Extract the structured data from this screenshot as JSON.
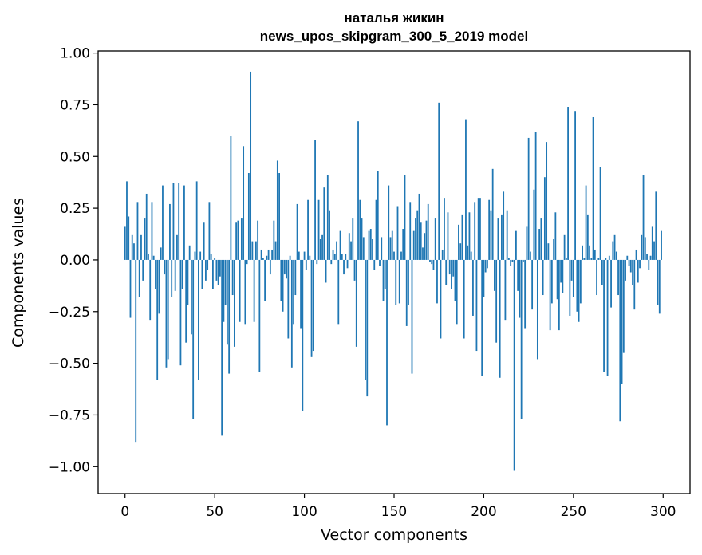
{
  "chart_data": {
    "type": "bar",
    "title": [
      "наталья жикин",
      "news_upos_skipgram_300_5_2019 model"
    ],
    "xlabel": "Vector components",
    "ylabel": "Components values",
    "xlim": [
      -15,
      315
    ],
    "ylim": [
      -1.13,
      1.01
    ],
    "xticks": [
      0,
      50,
      100,
      150,
      200,
      250,
      300
    ],
    "xtick_labels": [
      "0",
      "50",
      "100",
      "150",
      "200",
      "250",
      "300"
    ],
    "yticks": [
      1.0,
      0.75,
      0.5,
      0.25,
      0.0,
      -0.25,
      -0.5,
      -0.75,
      -1.0
    ],
    "ytick_labels": [
      "1.00",
      "0.75",
      "0.50",
      "0.25",
      "0.00",
      "−0.25",
      "−0.50",
      "−0.75",
      "−1.00"
    ],
    "grid": false,
    "bar_color": "#1f77b4",
    "values": [
      0.16,
      0.38,
      0.21,
      -0.28,
      0.12,
      0.08,
      -0.88,
      0.28,
      -0.18,
      0.12,
      -0.1,
      0.2,
      0.32,
      0.03,
      -0.29,
      0.28,
      0.02,
      -0.14,
      -0.58,
      -0.26,
      0.06,
      0.36,
      -0.07,
      -0.52,
      -0.48,
      0.27,
      -0.18,
      0.37,
      -0.15,
      0.12,
      0.37,
      -0.51,
      -0.14,
      0.36,
      -0.4,
      -0.22,
      0.07,
      -0.36,
      -0.77,
      0.04,
      0.38,
      -0.58,
      0.04,
      -0.14,
      0.18,
      -0.1,
      -0.05,
      0.28,
      0.03,
      -0.14,
      0.01,
      -0.1,
      -0.12,
      -0.08,
      -0.85,
      -0.3,
      -0.22,
      -0.41,
      -0.55,
      0.6,
      -0.17,
      -0.42,
      0.18,
      0.19,
      -0.3,
      0.2,
      0.55,
      -0.31,
      -0.02,
      0.42,
      0.91,
      0.09,
      -0.3,
      0.09,
      0.19,
      -0.54,
      0.05,
      0.01,
      -0.2,
      0.02,
      0.05,
      -0.07,
      0.05,
      0.19,
      0.09,
      0.48,
      0.42,
      -0.2,
      -0.25,
      -0.07,
      -0.09,
      -0.38,
      0.02,
      -0.52,
      -0.31,
      -0.17,
      0.27,
      0.04,
      -0.33,
      -0.73,
      0.04,
      -0.05,
      0.29,
      0.02,
      -0.47,
      -0.44,
      0.58,
      -0.02,
      0.29,
      0.1,
      0.12,
      0.35,
      -0.11,
      0.41,
      0.24,
      -0.02,
      0.05,
      0.03,
      0.09,
      -0.31,
      0.14,
      0.03,
      -0.07,
      0.03,
      -0.04,
      0.13,
      0.09,
      0.2,
      -0.1,
      -0.42,
      0.67,
      0.29,
      0.2,
      0.11,
      -0.58,
      -0.66,
      0.14,
      0.15,
      0.1,
      -0.05,
      0.29,
      0.43,
      -0.03,
      0.11,
      -0.2,
      -0.14,
      -0.8,
      0.36,
      0.11,
      0.14,
      0.04,
      -0.22,
      0.26,
      -0.21,
      0.04,
      0.15,
      0.41,
      -0.32,
      -0.22,
      0.28,
      -0.55,
      0.14,
      0.2,
      0.24,
      0.32,
      0.18,
      0.06,
      0.13,
      0.19,
      0.27,
      -0.01,
      -0.02,
      -0.05,
      0.2,
      -0.21,
      0.76,
      -0.38,
      0.05,
      0.3,
      -0.12,
      0.23,
      -0.07,
      -0.14,
      -0.08,
      -0.2,
      -0.31,
      0.17,
      0.08,
      0.22,
      -0.38,
      0.68,
      0.07,
      0.23,
      0.04,
      -0.27,
      0.28,
      -0.44,
      0.3,
      0.3,
      -0.56,
      -0.18,
      -0.06,
      -0.04,
      0.29,
      0.24,
      0.44,
      -0.15,
      -0.4,
      0.2,
      -0.57,
      0.22,
      0.33,
      -0.29,
      0.24,
      0.01,
      -0.03,
      -0.01,
      -1.02,
      0.14,
      -0.15,
      -0.28,
      -0.77,
      -0.01,
      -0.33,
      0.16,
      0.59,
      0.04,
      -0.24,
      0.34,
      0.62,
      -0.48,
      0.15,
      0.2,
      -0.17,
      0.4,
      0.57,
      0.08,
      -0.34,
      -0.21,
      0.1,
      0.23,
      -0.19,
      -0.34,
      -0.11,
      -0.16,
      0.12,
      0.01,
      0.74,
      -0.27,
      -0.1,
      -0.18,
      0.72,
      -0.25,
      -0.3,
      -0.21,
      0.07,
      0.01,
      0.36,
      0.22,
      0.07,
      0.01,
      0.69,
      0.05,
      -0.17,
      0.01,
      0.45,
      -0.12,
      -0.54,
      0.01,
      -0.56,
      0.02,
      -0.23,
      0.09,
      0.12,
      0.04,
      -0.17,
      -0.78,
      -0.6,
      -0.45,
      -0.1,
      0.02,
      -0.03,
      -0.06,
      -0.12,
      -0.24,
      0.05,
      -0.11,
      -0.04,
      0.12,
      0.41,
      0.11,
      0.03,
      -0.05,
      0.02,
      0.16,
      0.09,
      0.33,
      -0.22,
      -0.26,
      0.14
    ]
  }
}
